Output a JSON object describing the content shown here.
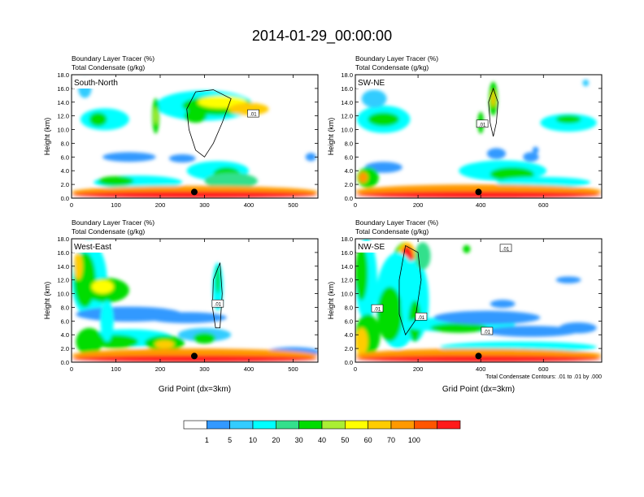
{
  "title": "2014-01-29_00:00:00",
  "colors": {
    "palette": [
      "#ffffff",
      "#3399ff",
      "#33ccff",
      "#00ffff",
      "#33e08c",
      "#00dd00",
      "#aaee33",
      "#ffff00",
      "#ffcc00",
      "#ff9900",
      "#ff5500",
      "#ff1a1a"
    ]
  },
  "chart_data": [
    {
      "type": "heatmap",
      "panel": "South-North",
      "title_lines": [
        "Boundary Layer Tracer   (%)",
        "Total Condensate   (g/kg)"
      ],
      "ylabel": "Height (km)",
      "xlabel": "",
      "xlim": [
        0,
        556
      ],
      "ylim": [
        0,
        18
      ],
      "xticks": [
        "0",
        "100",
        "200",
        "300",
        "400",
        "500"
      ],
      "xtick_values": [
        0,
        100,
        200,
        300,
        400,
        500
      ],
      "yticks": [
        "0.0",
        "2.0",
        "4.0",
        "6.0",
        "8.0",
        "10.0",
        "12.0",
        "14.0",
        "16.0",
        "18.0"
      ],
      "contour_labels": [
        "0.01"
      ],
      "marker_x": 277
    },
    {
      "type": "heatmap",
      "panel": "SW-NE",
      "title_lines": [
        "Boundary Layer Tracer   (%)",
        "Total Condensate   (g/kg)"
      ],
      "ylabel": "Height (km)",
      "xlabel": "",
      "xlim": [
        0,
        786
      ],
      "ylim": [
        0,
        18
      ],
      "xticks": [
        "0",
        "200",
        "400",
        "600"
      ],
      "xtick_values": [
        0,
        200,
        400,
        600
      ],
      "yticks": [
        "0.0",
        "2.0",
        "4.0",
        "6.0",
        "8.0",
        "10.0",
        "12.0",
        "14.0",
        "16.0",
        "18.0"
      ],
      "contour_labels": [
        "0.01"
      ],
      "marker_x": 393
    },
    {
      "type": "heatmap",
      "panel": "West-East",
      "title_lines": [
        "Boundary Layer Tracer   (%)",
        "Total Condensate   (g/kg)"
      ],
      "ylabel": "Height (km)",
      "xlabel": "Grid Point (dx=3km)",
      "xlim": [
        0,
        556
      ],
      "ylim": [
        0,
        18
      ],
      "xticks": [
        "0",
        "100",
        "200",
        "300",
        "400",
        "500"
      ],
      "xtick_values": [
        0,
        100,
        200,
        300,
        400,
        500
      ],
      "yticks": [
        "0.0",
        "2.0",
        "4.0",
        "6.0",
        "8.0",
        "10.0",
        "12.0",
        "14.0",
        "16.0",
        "18.0"
      ],
      "contour_labels": [
        "0.01"
      ],
      "marker_x": 277
    },
    {
      "type": "heatmap",
      "panel": "NW-SE",
      "title_lines": [
        "Boundary Layer Tracer   (%)",
        "Total Condensate   (g/kg)"
      ],
      "ylabel": "Height (km)",
      "xlabel": "Grid Point (dx=3km)",
      "xlim": [
        0,
        786
      ],
      "ylim": [
        0,
        18
      ],
      "xticks": [
        "0",
        "200",
        "400",
        "600"
      ],
      "xtick_values": [
        0,
        200,
        400,
        600
      ],
      "yticks": [
        "0.0",
        "2.0",
        "4.0",
        "6.0",
        "8.0",
        "10.0",
        "12.0",
        "14.0",
        "16.0",
        "18.0"
      ],
      "contour_labels": [
        "0.01",
        "0.01",
        "0.01",
        "0.01"
      ],
      "marker_x": 393,
      "footnote": "Total Condensate Contours: .01 to .01 by .000"
    }
  ],
  "colorbar": {
    "labels": [
      "1",
      "5",
      "10",
      "20",
      "30",
      "40",
      "50",
      "60",
      "70",
      "100"
    ]
  }
}
